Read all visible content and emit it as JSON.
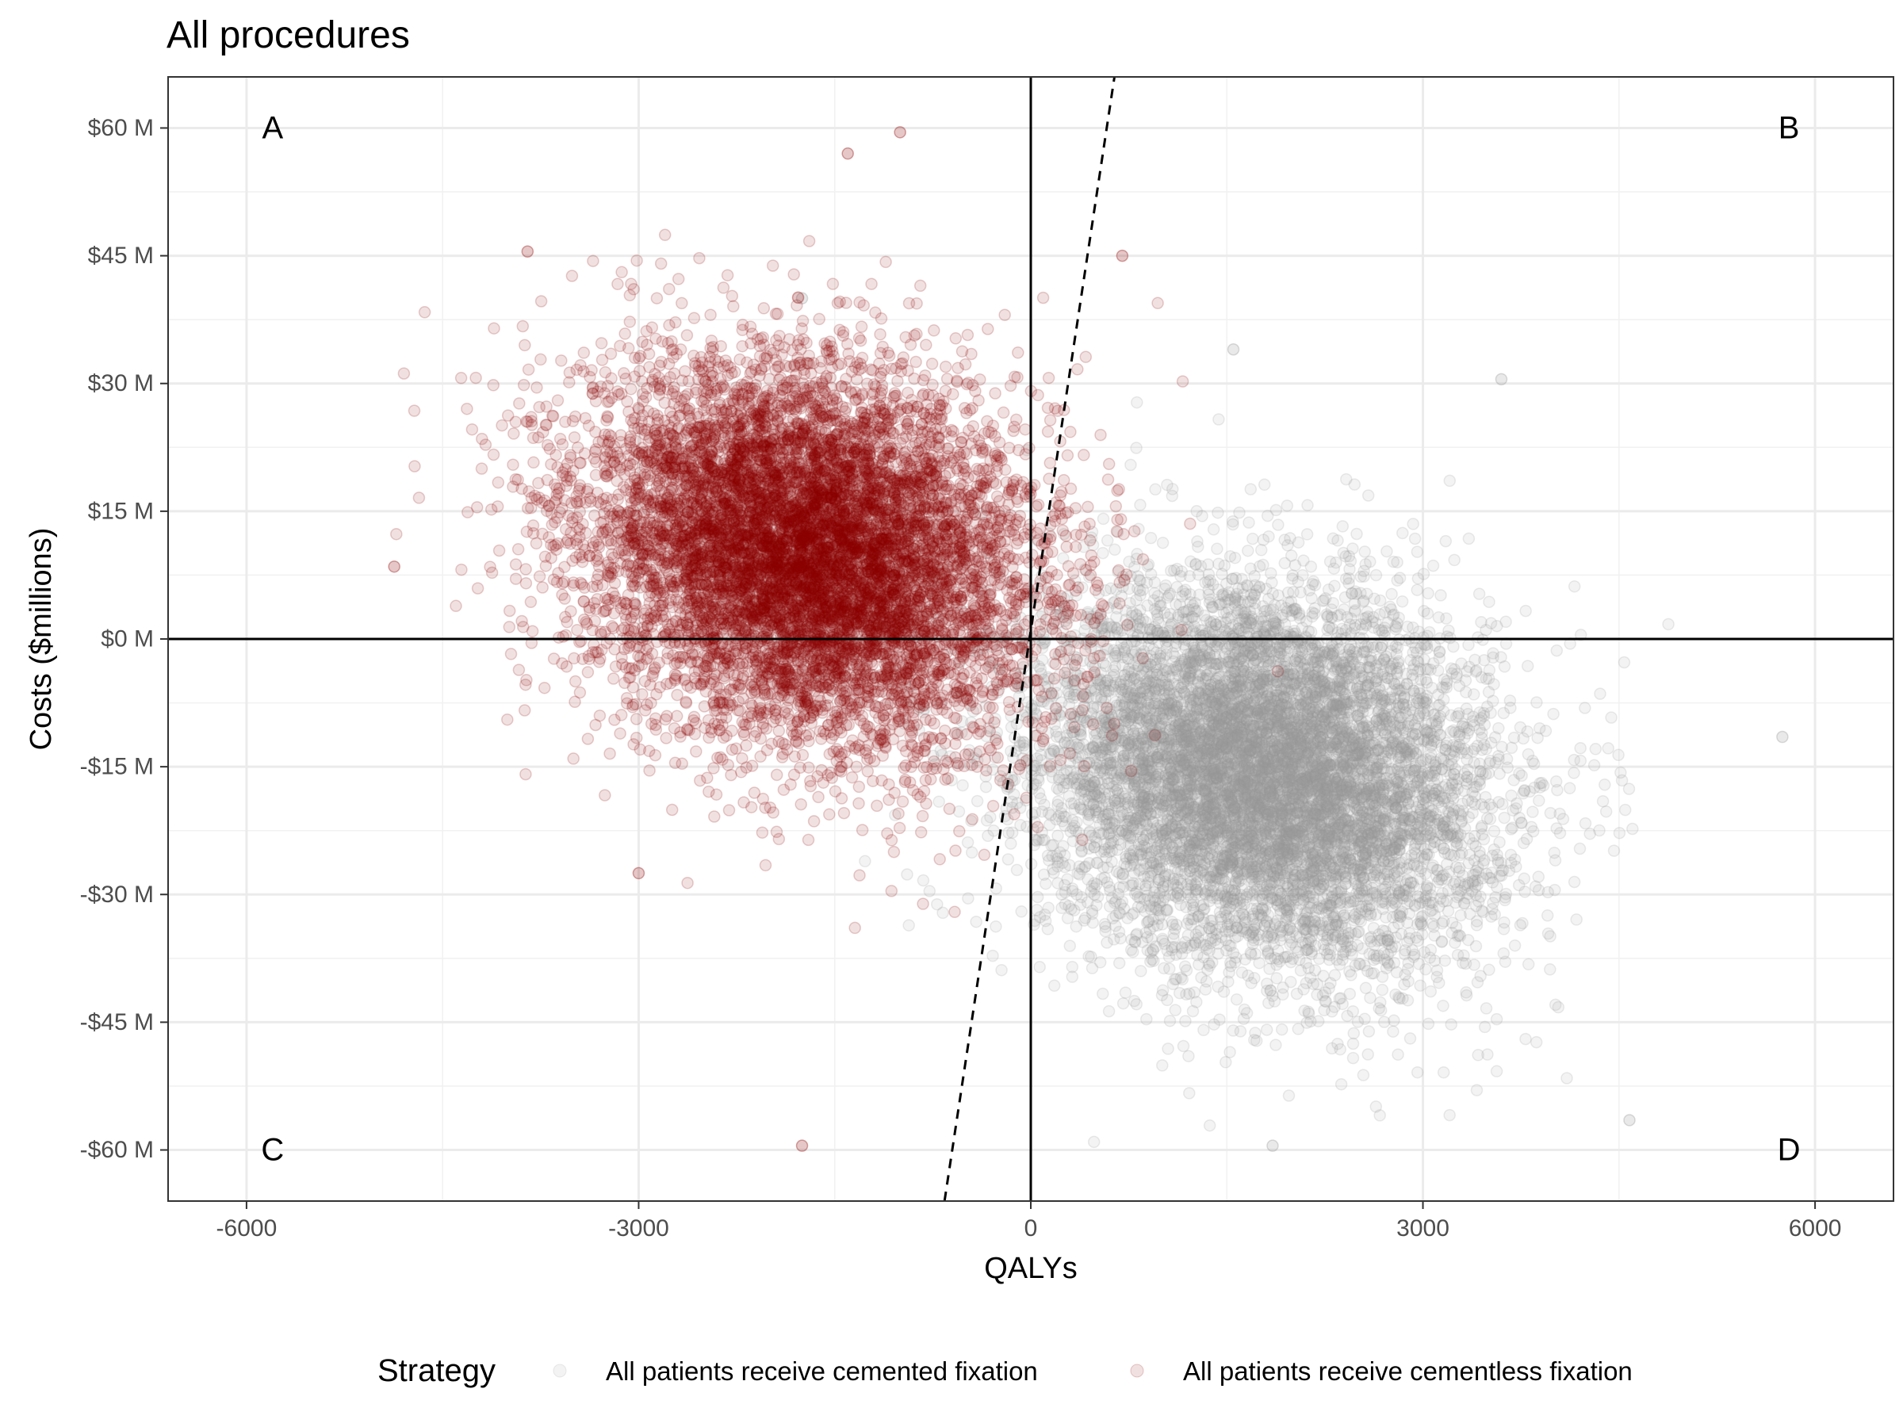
{
  "chart_data": {
    "type": "scatter",
    "title": "All procedures",
    "xlabel": "QALYs",
    "ylabel": "Costs ($millions)",
    "xlim": [
      -6600,
      6600
    ],
    "ylim": [
      -66,
      66
    ],
    "x_ticks": [
      -6000,
      -3000,
      0,
      3000,
      6000
    ],
    "x_tick_labels": [
      "-6000",
      "-3000",
      "0",
      "3000",
      "6000"
    ],
    "y_ticks": [
      -60,
      -45,
      -30,
      -15,
      0,
      15,
      30,
      45,
      60
    ],
    "y_tick_labels": [
      "-$60 M",
      "-$45 M",
      "-$30 M",
      "-$15 M",
      "$0 M",
      "$15 M",
      "$30 M",
      "$45 M",
      "$60 M"
    ],
    "grid": true,
    "reference_lines": {
      "horizontal_y": 0,
      "vertical_x": 0,
      "dashed_threshold_line": {
        "points": [
          [
            -660,
            -66
          ],
          [
            640,
            66
          ]
        ]
      }
    },
    "quadrant_labels": [
      {
        "text": "A",
        "x": -5800,
        "y": 60
      },
      {
        "text": "B",
        "x": 5800,
        "y": 60
      },
      {
        "text": "C",
        "x": -5800,
        "y": -60
      },
      {
        "text": "D",
        "x": 5800,
        "y": -60
      }
    ],
    "legend": {
      "title": "Strategy",
      "position": "bottom",
      "entries": [
        "All patients receive cemented fixation",
        "All patients receive cementless fixation"
      ]
    },
    "series": [
      {
        "name": "All patients receive cemented fixation",
        "color": "#999999",
        "opacity": 0.12,
        "distribution": {
          "mean_x": 1800,
          "mean_y": -16,
          "sd_x": 850,
          "sd_y": 11,
          "correlation": -0.15,
          "n": 9000
        },
        "extreme_points": [
          [
            5750,
            -11.5
          ],
          [
            1850,
            -59.5
          ],
          [
            3600,
            30.5
          ],
          [
            -1750,
            40
          ],
          [
            4580,
            -56.5
          ],
          [
            1550,
            34
          ]
        ]
      },
      {
        "name": "All patients receive cementless fixation",
        "color": "#8b0000",
        "opacity": 0.12,
        "distribution": {
          "mean_x": -1700,
          "mean_y": 10,
          "sd_x": 850,
          "sd_y": 11,
          "correlation": -0.15,
          "n": 9000
        },
        "extreme_points": [
          [
            -4870,
            8.5
          ],
          [
            -1750,
            -59.5
          ],
          [
            -1000,
            59.5
          ],
          [
            -3000,
            -27.5
          ],
          [
            700,
            45
          ],
          [
            -3850,
            45.5
          ],
          [
            -1400,
            57
          ]
        ]
      }
    ]
  }
}
